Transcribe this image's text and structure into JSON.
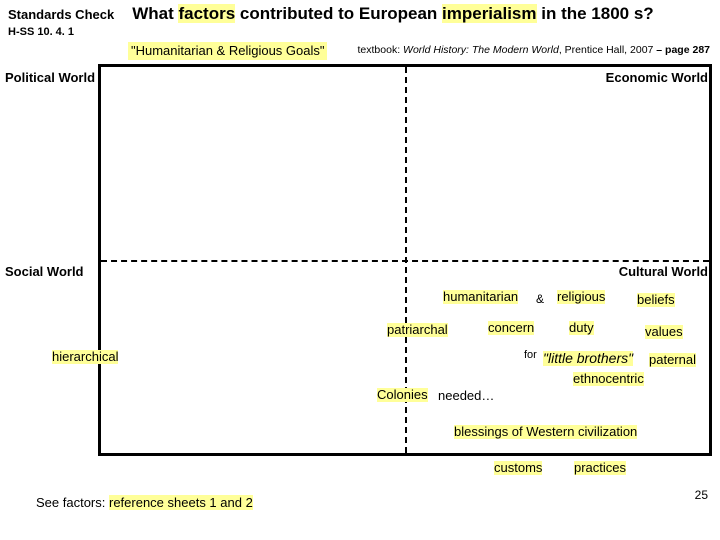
{
  "header": {
    "standards_check": "Standards Check",
    "question_pre": "What ",
    "question_factors": "factors",
    "question_mid": " contributed to European ",
    "question_imperialism": "imperialism",
    "question_post": " in the 1800 s?",
    "hss": "H-SS 10. 4. 1",
    "hum_callout": "\"Humanitarian & Religious Goals\"",
    "textbook_label": "textbook: ",
    "textbook_title": "World History: The Modern World",
    "textbook_tail": ", Prentice Hall, 2007 ",
    "textbook_page": "– page 287"
  },
  "quadrants": {
    "pw": "Political World",
    "ew": "Economic World",
    "sw": "Social World",
    "cw": "Cultural World"
  },
  "terms": {
    "hierarchical": "hierarchical",
    "humanitarian": "humanitarian",
    "amp": "&",
    "religious": "religious",
    "beliefs": "beliefs",
    "patriarchal": "patriarchal",
    "concern": "concern",
    "duty": "duty",
    "values": "values",
    "for": "for",
    "little_brothers": "\"little brothers\"",
    "paternal": "paternal",
    "ethnocentric": "ethnocentric",
    "colonies": "Colonies",
    "needed": " needed…",
    "blessings": "blessings of Western civilization",
    "customs": "customs",
    "practices": "practices"
  },
  "footer": {
    "see_factors_pre": "See factors: ",
    "see_factors_link": "reference sheets 1 and 2",
    "page_num": "25"
  },
  "colors": {
    "highlight": "#ffff99",
    "border": "#000000",
    "bg": "#ffffff"
  }
}
